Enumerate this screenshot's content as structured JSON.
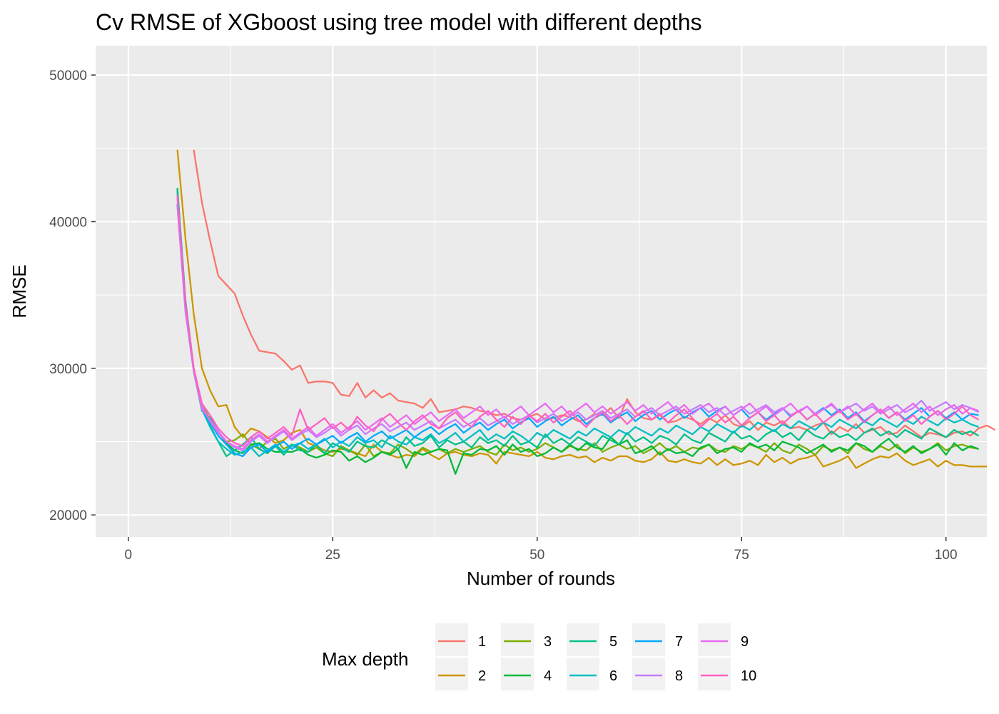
{
  "chart_data": {
    "type": "line",
    "title": "Cv RMSE of XGboost using tree model with different depths",
    "xlabel": "Number of rounds",
    "ylabel": "RMSE",
    "xlim": [
      -4,
      105
    ],
    "ylim": [
      18500,
      52000
    ],
    "x_ticks": [
      0,
      25,
      50,
      75,
      100
    ],
    "x_tick_labels": [
      "0",
      "25",
      "50",
      "75",
      "100"
    ],
    "y_ticks": [
      20000,
      30000,
      40000,
      50000
    ],
    "y_tick_labels": [
      "20000",
      "30000",
      "40000",
      "50000"
    ],
    "grid": true,
    "legend": {
      "title": "Max depth",
      "position": "bottom"
    },
    "series": [
      {
        "name": "1",
        "color": "#F8766D",
        "x_start": 8,
        "values": [
          44900,
          41300,
          38700,
          36300,
          35700,
          35100,
          33600,
          32300,
          31200,
          31100,
          31000,
          30500,
          29900,
          30200,
          29000,
          29100,
          29100,
          29000,
          28200,
          28100,
          29000,
          28000,
          28500,
          28000,
          28300,
          27800,
          27700,
          27600,
          27300,
          27900,
          27000,
          27100,
          27200,
          27400,
          27300,
          27100,
          27000,
          26800,
          26900,
          26600,
          26500,
          26700,
          26900,
          26500,
          26600,
          26800,
          26700,
          26400,
          26500,
          26900,
          26800,
          27300,
          26600,
          27900,
          27000,
          26600,
          26500,
          26800,
          26300,
          26400,
          26700,
          26500,
          26200,
          26600,
          26300,
          26800,
          26200,
          26000,
          26400,
          25800,
          26300,
          26100,
          26400,
          25900,
          26000,
          25800,
          26100,
          26300,
          25500,
          26000,
          25700,
          26200,
          25600,
          25800,
          26000,
          25500,
          25600,
          26100,
          25700,
          25300,
          25600,
          25500,
          25300,
          25600,
          25700,
          25400,
          25900,
          26100,
          25800
        ]
      },
      {
        "name": "2",
        "color": "#CD9600",
        "x_start": 6,
        "values": [
          44900,
          38800,
          33700,
          30000,
          28500,
          27400,
          27500,
          26000,
          25300,
          25900,
          25700,
          25300,
          24900,
          25100,
          25600,
          25800,
          24900,
          24700,
          24400,
          24300,
          24500,
          24400,
          24200,
          24000,
          24800,
          24300,
          24100,
          23900,
          24100,
          24000,
          24500,
          24100,
          23800,
          24200,
          24300,
          24100,
          24000,
          24200,
          24100,
          23500,
          24300,
          24200,
          24100,
          24000,
          24300,
          23900,
          23800,
          24000,
          24100,
          23900,
          24000,
          23600,
          23900,
          23700,
          24000,
          24000,
          23700,
          23600,
          23800,
          24300,
          23700,
          23600,
          23800,
          23600,
          23500,
          23900,
          23400,
          23800,
          23400,
          23500,
          23700,
          23400,
          24100,
          23600,
          23900,
          23500,
          23800,
          23900,
          24100,
          23300,
          23500,
          23700,
          24000,
          23200,
          23500,
          23800,
          24000,
          23900,
          24200,
          23700,
          23400,
          23600,
          23800,
          23300,
          23700,
          23400,
          23400,
          23300,
          23300,
          23300
        ]
      },
      {
        "name": "3",
        "color": "#7CAE00",
        "x_start": 6,
        "values": [
          42100,
          34500,
          30000,
          27500,
          26500,
          25700,
          25000,
          25100,
          25500,
          24800,
          24500,
          25000,
          25200,
          24500,
          24800,
          24600,
          24300,
          24600,
          24200,
          24000,
          24700,
          24400,
          24100,
          24800,
          24000,
          24300,
          24200,
          24800,
          24500,
          24100,
          24600,
          24300,
          24500,
          24200,
          24500,
          24300,
          24500,
          24700,
          24300,
          24100,
          24800,
          24400,
          24600,
          24300,
          24500,
          24900,
          24600,
          24300,
          24700,
          24500,
          24400,
          24900,
          24300,
          24600,
          24800,
          24500,
          24700,
          24200,
          24500,
          24900,
          24400,
          24700,
          24300,
          24600,
          24500,
          24800,
          24400,
          24300,
          24700,
          24500,
          24800,
          24600,
          24300,
          24900,
          24400,
          24200,
          24800,
          24500,
          24100,
          24700,
          24400,
          24600,
          24200,
          24900,
          24500,
          24300,
          24700,
          24400,
          24800,
          24200,
          24600,
          24300,
          24500,
          24900,
          24400,
          24700,
          24800,
          24600,
          24500
        ]
      },
      {
        "name": "4",
        "color": "#00BA38",
        "x_start": 6,
        "values": [
          42300,
          34500,
          29800,
          27100,
          26600,
          25700,
          24900,
          24400,
          24200,
          24800,
          24900,
          24500,
          24300,
          24300,
          24300,
          24500,
          24100,
          23900,
          24100,
          24400,
          24300,
          23700,
          24000,
          23600,
          23900,
          24300,
          24100,
          24500,
          23200,
          24300,
          24100,
          24300,
          24500,
          24400,
          22800,
          24200,
          24100,
          24500,
          24400,
          24700,
          24100,
          24800,
          24300,
          24500,
          24000,
          24200,
          24600,
          24300,
          24800,
          24400,
          24900,
          24600,
          24500,
          25300,
          24800,
          25100,
          24200,
          24400,
          24700,
          24100,
          24500,
          24200,
          24300,
          24000,
          24600,
          24800,
          24200,
          24500,
          24600,
          24300,
          24900,
          24600,
          24800,
          24400,
          25000,
          24800,
          24600,
          24200,
          24500,
          24800,
          24300,
          24600,
          24400,
          24900,
          24700,
          24300,
          24800,
          25200,
          24600,
          24300,
          24700,
          24200,
          24500,
          24800,
          24100,
          24900,
          24400,
          24700,
          24500
        ]
      },
      {
        "name": "5",
        "color": "#00C08B",
        "x_start": 6,
        "values": [
          42200,
          34600,
          29900,
          27400,
          26100,
          25000,
          24000,
          24400,
          24800,
          25300,
          24500,
          24200,
          24700,
          24100,
          24800,
          24400,
          24300,
          24800,
          24200,
          24900,
          24600,
          24300,
          25000,
          24700,
          24600,
          25100,
          24800,
          24500,
          25300,
          24700,
          24900,
          25400,
          24600,
          25100,
          24800,
          25000,
          24600,
          25300,
          24900,
          25100,
          24700,
          25400,
          24800,
          25000,
          24600,
          25500,
          24900,
          25200,
          24800,
          25300,
          25000,
          24700,
          25400,
          25100,
          24800,
          25600,
          25000,
          25300,
          24900,
          25400,
          25200,
          24800,
          25500,
          25100,
          24900,
          25600,
          25300,
          25000,
          25700,
          25200,
          25400,
          25000,
          25500,
          25800,
          25300,
          25600,
          25100,
          25800,
          25400,
          25200,
          25700,
          25300,
          25500,
          25100,
          25600,
          25900,
          25400,
          25700,
          25300,
          25800,
          25500,
          25200,
          25900,
          25600,
          25300,
          25800,
          25500,
          25700,
          25400
        ]
      },
      {
        "name": "6",
        "color": "#00BFC4",
        "x_start": 6,
        "values": [
          41900,
          34200,
          29800,
          27200,
          26000,
          25000,
          24500,
          24100,
          24300,
          24600,
          24000,
          24400,
          24800,
          24300,
          24700,
          24900,
          24500,
          24800,
          25200,
          24600,
          25000,
          24700,
          25300,
          24900,
          25100,
          24600,
          25400,
          25000,
          24800,
          25300,
          25100,
          25500,
          24900,
          25200,
          25600,
          25000,
          25400,
          25800,
          25100,
          25500,
          25200,
          25700,
          25400,
          25000,
          25600,
          25300,
          25800,
          25500,
          25200,
          25700,
          25400,
          25900,
          25600,
          25300,
          25800,
          25500,
          26000,
          25700,
          25400,
          25900,
          25600,
          26100,
          25800,
          25500,
          26000,
          25700,
          26200,
          25900,
          25600,
          26100,
          25800,
          26300,
          26000,
          25700,
          26200,
          25900,
          26400,
          26100,
          25800,
          26300,
          26000,
          26500,
          26200,
          25900,
          26400,
          26100,
          26600,
          26300,
          26000,
          26500,
          26200,
          26700,
          26400,
          26100,
          26600,
          26300,
          26500,
          26200,
          26000
        ]
      },
      {
        "name": "7",
        "color": "#00A9FF",
        "x_start": 6,
        "values": [
          41200,
          34000,
          29900,
          27200,
          26300,
          25400,
          24800,
          24200,
          24000,
          24600,
          24800,
          24300,
          24700,
          25000,
          24500,
          24900,
          25200,
          24800,
          25100,
          25400,
          24900,
          25300,
          25600,
          25000,
          25400,
          25700,
          25200,
          25500,
          25800,
          25300,
          25700,
          26000,
          25500,
          25900,
          26200,
          25600,
          26000,
          26300,
          25800,
          26200,
          26500,
          25900,
          26300,
          26600,
          26000,
          26400,
          26700,
          26100,
          26500,
          26800,
          26200,
          26600,
          26900,
          26300,
          26700,
          27000,
          26400,
          26800,
          27100,
          26500,
          26900,
          27200,
          26600,
          27000,
          27300,
          26700,
          27100,
          27400,
          26800,
          27200,
          26600,
          27000,
          26500,
          26900,
          27300,
          26700,
          27100,
          26500,
          26900,
          27300,
          26800,
          27200,
          26600,
          27000,
          26400,
          26800,
          27200,
          26600,
          27000,
          26500,
          26900,
          27300,
          26700,
          27100,
          26600,
          27000,
          26500,
          26900,
          26800
        ]
      },
      {
        "name": "8",
        "color": "#C77CFF",
        "x_start": 6,
        "values": [
          41000,
          33800,
          29800,
          27200,
          26500,
          25700,
          25000,
          24600,
          24400,
          25000,
          25400,
          24900,
          25300,
          25700,
          25100,
          25500,
          25800,
          25300,
          25600,
          26000,
          25400,
          25800,
          26100,
          25500,
          25900,
          26200,
          25700,
          26000,
          26300,
          25800,
          26100,
          26400,
          25900,
          26200,
          26500,
          26000,
          26300,
          26600,
          26100,
          26400,
          26700,
          26200,
          26500,
          26800,
          26300,
          26600,
          26900,
          26400,
          26700,
          27000,
          26500,
          26800,
          27100,
          26600,
          26900,
          27200,
          26700,
          27000,
          27300,
          26800,
          27100,
          27400,
          26900,
          27200,
          27500,
          27000,
          27300,
          26800,
          27100,
          27400,
          26900,
          27200,
          27500,
          27000,
          27300,
          26800,
          27100,
          27400,
          26900,
          27200,
          27500,
          27000,
          27300,
          27600,
          27100,
          27400,
          26900,
          27200,
          27500,
          27000,
          27300,
          27800,
          27100,
          27400,
          27700,
          27200,
          27500,
          27300,
          27000
        ]
      },
      {
        "name": "9",
        "color": "#E76BF3",
        "x_start": 6,
        "values": [
          41600,
          34300,
          29900,
          27400,
          26400,
          25600,
          25000,
          24700,
          24500,
          25100,
          25500,
          25000,
          25400,
          25800,
          25200,
          25600,
          26000,
          25400,
          25800,
          26200,
          25600,
          26000,
          26400,
          25800,
          26200,
          26600,
          26000,
          26400,
          26800,
          26200,
          26600,
          27000,
          26400,
          26800,
          27200,
          26600,
          27000,
          27400,
          26800,
          27200,
          26600,
          27000,
          27400,
          26800,
          27200,
          27600,
          27000,
          27400,
          26800,
          27200,
          27600,
          27000,
          27400,
          26900,
          27300,
          27700,
          27100,
          27500,
          26900,
          27300,
          27700,
          27100,
          27500,
          26900,
          27300,
          27600,
          27000,
          27400,
          26800,
          27200,
          27600,
          27000,
          27400,
          26800,
          27200,
          27600,
          27000,
          27400,
          26800,
          27200,
          27600,
          27000,
          27400,
          26800,
          27200,
          27600,
          27000,
          27400,
          26800,
          27200,
          27600,
          27000,
          27400,
          26800,
          27200,
          27500,
          26900,
          27300,
          27100
        ]
      },
      {
        "name": "10",
        "color": "#FF61C3",
        "x_start": 6,
        "values": [
          41800,
          34400,
          30000,
          27600,
          26800,
          25900,
          25300,
          24900,
          24700,
          25300,
          25700,
          25200,
          25600,
          26000,
          25400,
          27200,
          25800,
          26200,
          26600,
          25900,
          26300,
          25800,
          26700,
          26100,
          25700,
          26500,
          26900,
          26300,
          25800,
          26400,
          26800,
          26200,
          25900,
          26600,
          27000,
          26400,
          26000,
          26700,
          27100,
          26500,
          26000,
          26700,
          26200,
          26800,
          26400,
          26900,
          26300,
          26700,
          27100,
          26500,
          26000,
          26600,
          27000,
          26400,
          26800,
          26200,
          26700,
          27100,
          26500,
          26900,
          26300,
          26800,
          27200,
          26600,
          26000,
          26500,
          26900,
          26300,
          26700,
          26100,
          26600,
          27000,
          26400,
          26800,
          26200,
          26700,
          27100,
          26500,
          26900,
          26300,
          26700,
          27100,
          26500,
          26900,
          26300,
          26800,
          27200,
          26600,
          27000,
          26400,
          26800,
          26200,
          26700,
          27100,
          26500,
          26900,
          27400,
          26800,
          26500
        ]
      }
    ]
  }
}
